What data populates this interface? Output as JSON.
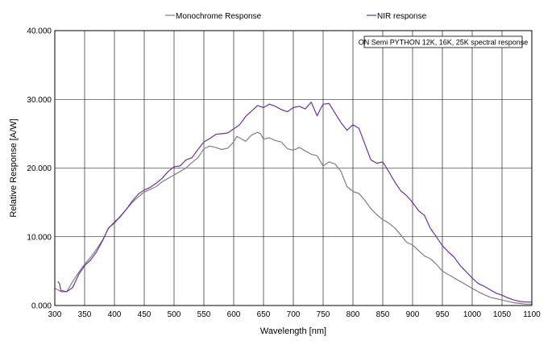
{
  "chart_data": {
    "type": "line",
    "title": "",
    "xlabel": "Wavelength [nm]",
    "ylabel": "Relative Response [A/W]",
    "xlim": [
      300,
      1100
    ],
    "ylim": [
      0,
      40
    ],
    "x_ticks": [
      "300",
      "350",
      "400",
      "450",
      "500",
      "550",
      "600",
      "650",
      "700",
      "750",
      "800",
      "850",
      "900",
      "950",
      "1000",
      "1050",
      "1100"
    ],
    "y_ticks": [
      "0.000",
      "10.000",
      "20.000",
      "30.000",
      "40.000"
    ],
    "grid": true,
    "legend_position": "top",
    "annotation": "ON Semi PYTHON 12K, 16K, 25K spectral response",
    "series": [
      {
        "name": "Monochrome Response",
        "color": "#7f7f7f",
        "points": [
          [
            300,
            2.5
          ],
          [
            305,
            2.3
          ],
          [
            310,
            2.0
          ],
          [
            320,
            2.0
          ],
          [
            330,
            3.5
          ],
          [
            340,
            4.8
          ],
          [
            350,
            6.0
          ],
          [
            360,
            7.0
          ],
          [
            370,
            8.2
          ],
          [
            380,
            9.5
          ],
          [
            390,
            11.2
          ],
          [
            400,
            12.2
          ],
          [
            410,
            12.9
          ],
          [
            420,
            14.0
          ],
          [
            430,
            15.0
          ],
          [
            440,
            15.8
          ],
          [
            450,
            16.5
          ],
          [
            460,
            16.9
          ],
          [
            470,
            17.3
          ],
          [
            480,
            18.0
          ],
          [
            490,
            18.5
          ],
          [
            500,
            19.0
          ],
          [
            510,
            19.5
          ],
          [
            520,
            20.0
          ],
          [
            530,
            20.8
          ],
          [
            540,
            21.5
          ],
          [
            550,
            22.8
          ],
          [
            560,
            23.2
          ],
          [
            570,
            23.0
          ],
          [
            580,
            22.7
          ],
          [
            590,
            22.9
          ],
          [
            600,
            23.8
          ],
          [
            605,
            24.6
          ],
          [
            610,
            24.4
          ],
          [
            620,
            23.9
          ],
          [
            630,
            24.8
          ],
          [
            640,
            25.2
          ],
          [
            645,
            25.0
          ],
          [
            650,
            24.2
          ],
          [
            660,
            24.4
          ],
          [
            670,
            24.0
          ],
          [
            680,
            23.8
          ],
          [
            690,
            22.8
          ],
          [
            700,
            22.6
          ],
          [
            710,
            23.0
          ],
          [
            720,
            22.5
          ],
          [
            730,
            22.0
          ],
          [
            740,
            21.8
          ],
          [
            750,
            20.3
          ],
          [
            760,
            20.9
          ],
          [
            770,
            20.6
          ],
          [
            780,
            19.5
          ],
          [
            790,
            17.3
          ],
          [
            800,
            16.6
          ],
          [
            810,
            16.3
          ],
          [
            820,
            15.3
          ],
          [
            830,
            14.1
          ],
          [
            840,
            13.2
          ],
          [
            850,
            12.5
          ],
          [
            860,
            12.0
          ],
          [
            870,
            11.3
          ],
          [
            880,
            10.3
          ],
          [
            890,
            9.2
          ],
          [
            900,
            8.8
          ],
          [
            910,
            8.0
          ],
          [
            920,
            7.2
          ],
          [
            930,
            6.8
          ],
          [
            940,
            6.0
          ],
          [
            950,
            5.0
          ],
          [
            960,
            4.5
          ],
          [
            970,
            4.0
          ],
          [
            980,
            3.5
          ],
          [
            990,
            3.0
          ],
          [
            1000,
            2.5
          ],
          [
            1010,
            2.0
          ],
          [
            1020,
            1.6
          ],
          [
            1030,
            1.2
          ],
          [
            1040,
            1.0
          ],
          [
            1050,
            0.8
          ],
          [
            1060,
            0.6
          ],
          [
            1070,
            0.4
          ],
          [
            1080,
            0.3
          ],
          [
            1090,
            0.2
          ],
          [
            1100,
            0.2
          ]
        ]
      },
      {
        "name": "NIR response",
        "color": "#7030a0",
        "points": [
          [
            305,
            3.5
          ],
          [
            308,
            3.2
          ],
          [
            310,
            2.2
          ],
          [
            320,
            2.0
          ],
          [
            330,
            2.6
          ],
          [
            340,
            4.5
          ],
          [
            350,
            5.8
          ],
          [
            360,
            6.6
          ],
          [
            370,
            7.8
          ],
          [
            380,
            9.4
          ],
          [
            390,
            11.3
          ],
          [
            400,
            12.0
          ],
          [
            410,
            13.0
          ],
          [
            420,
            14.0
          ],
          [
            430,
            15.2
          ],
          [
            440,
            16.2
          ],
          [
            450,
            16.8
          ],
          [
            460,
            17.2
          ],
          [
            470,
            17.8
          ],
          [
            480,
            18.5
          ],
          [
            490,
            19.5
          ],
          [
            500,
            20.2
          ],
          [
            510,
            20.3
          ],
          [
            520,
            21.2
          ],
          [
            530,
            21.5
          ],
          [
            540,
            22.7
          ],
          [
            550,
            23.8
          ],
          [
            560,
            24.3
          ],
          [
            570,
            24.9
          ],
          [
            580,
            25.0
          ],
          [
            590,
            25.1
          ],
          [
            600,
            25.7
          ],
          [
            610,
            26.3
          ],
          [
            620,
            27.5
          ],
          [
            630,
            28.3
          ],
          [
            640,
            29.1
          ],
          [
            650,
            28.8
          ],
          [
            660,
            29.3
          ],
          [
            670,
            29.0
          ],
          [
            680,
            28.5
          ],
          [
            690,
            28.2
          ],
          [
            700,
            28.8
          ],
          [
            710,
            29.0
          ],
          [
            720,
            28.6
          ],
          [
            730,
            29.6
          ],
          [
            740,
            27.6
          ],
          [
            745,
            28.5
          ],
          [
            750,
            29.3
          ],
          [
            760,
            29.4
          ],
          [
            770,
            28.0
          ],
          [
            780,
            26.6
          ],
          [
            790,
            25.5
          ],
          [
            800,
            26.3
          ],
          [
            810,
            25.8
          ],
          [
            820,
            23.5
          ],
          [
            830,
            21.2
          ],
          [
            840,
            20.7
          ],
          [
            850,
            20.9
          ],
          [
            860,
            19.5
          ],
          [
            870,
            18.0
          ],
          [
            880,
            16.7
          ],
          [
            890,
            16.0
          ],
          [
            900,
            15.0
          ],
          [
            910,
            13.8
          ],
          [
            920,
            13.1
          ],
          [
            930,
            11.2
          ],
          [
            940,
            10.0
          ],
          [
            950,
            8.7
          ],
          [
            960,
            7.8
          ],
          [
            970,
            7.0
          ],
          [
            980,
            5.8
          ],
          [
            990,
            4.9
          ],
          [
            1000,
            4.0
          ],
          [
            1010,
            3.2
          ],
          [
            1020,
            2.8
          ],
          [
            1030,
            2.3
          ],
          [
            1040,
            1.8
          ],
          [
            1050,
            1.5
          ],
          [
            1060,
            1.1
          ],
          [
            1070,
            0.8
          ],
          [
            1080,
            0.6
          ],
          [
            1090,
            0.5
          ],
          [
            1100,
            0.5
          ]
        ]
      }
    ]
  }
}
